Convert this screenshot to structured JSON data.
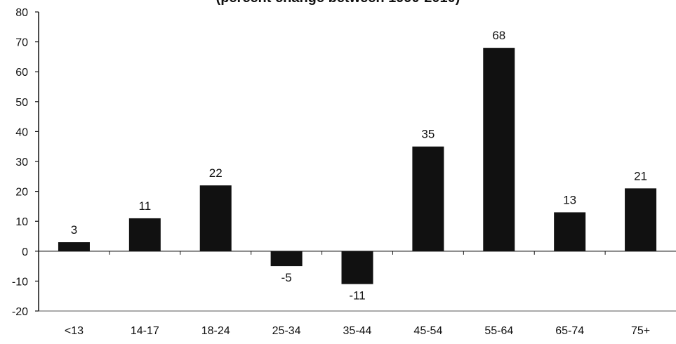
{
  "chart_data": {
    "type": "bar",
    "title": "(percent change between 1990-2010)",
    "categories": [
      "<13",
      "14-17",
      "18-24",
      "25-34",
      "35-44",
      "45-54",
      "55-64",
      "65-74",
      "75+"
    ],
    "values": [
      3,
      11,
      22,
      -5,
      -11,
      35,
      68,
      13,
      21
    ],
    "data_labels": [
      "3",
      "11",
      "22",
      "-5",
      "-11",
      "35",
      "68",
      "13",
      "21"
    ],
    "ylim": [
      -20,
      80
    ],
    "yticks": [
      "-20",
      "-10",
      "0",
      "10",
      "20",
      "30",
      "40",
      "50",
      "60",
      "70",
      "80"
    ],
    "xlabel": "",
    "ylabel": "",
    "grid": false,
    "legend": "none",
    "bar_color": "#111111"
  }
}
